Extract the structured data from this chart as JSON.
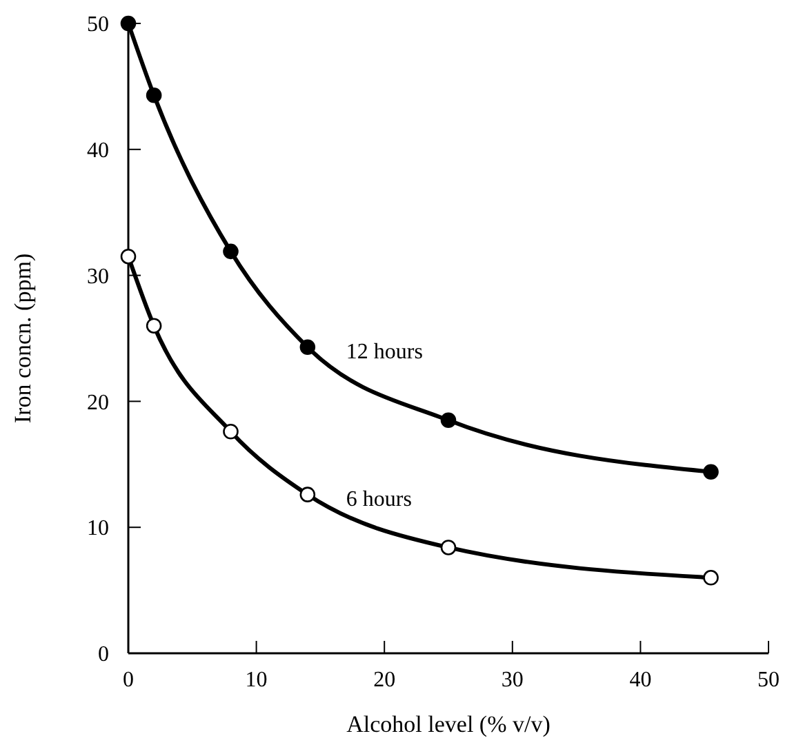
{
  "chart_data": {
    "type": "line",
    "xlabel": "Alcohol level (% v/v)",
    "ylabel": "Iron concn. (ppm)",
    "x": [
      0,
      2,
      8,
      14,
      25,
      45.5
    ],
    "series": [
      {
        "name": "12 hours",
        "color": "#000000",
        "values": [
          50,
          44.3,
          31.9,
          24.3,
          18.5,
          14.4
        ]
      },
      {
        "name": "6 hours",
        "color": "#ffffff",
        "values": [
          31.5,
          26,
          17.6,
          12.6,
          8.4,
          6
        ]
      }
    ],
    "xlim": [
      0,
      50
    ],
    "xticks": [
      0,
      10,
      20,
      30,
      40,
      50
    ],
    "ylim": [
      0,
      50
    ],
    "yticks": [
      0,
      10,
      20,
      30,
      40,
      50
    ],
    "marker": "circle",
    "grid": false
  }
}
